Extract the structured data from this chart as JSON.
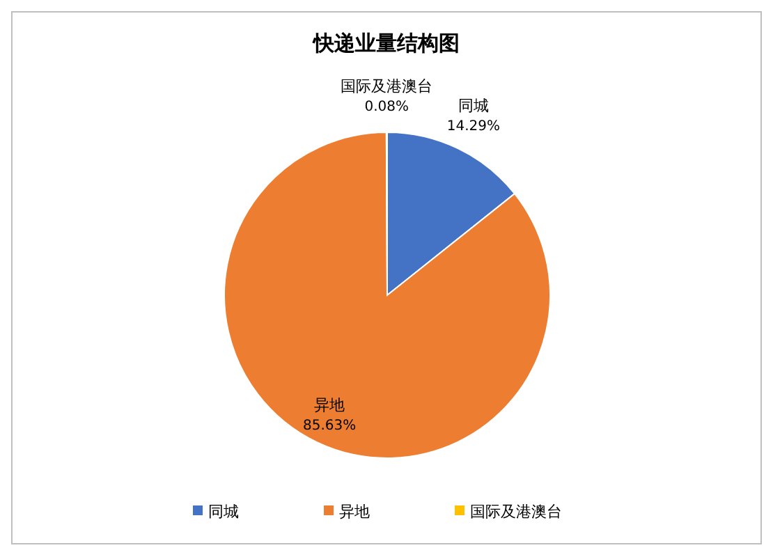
{
  "chart_data": {
    "type": "pie",
    "title": "快递业量结构图",
    "categories": [
      "同城",
      "异地",
      "国际及港澳台"
    ],
    "values": [
      14.29,
      85.63,
      0.08
    ],
    "colors": [
      "#4472c4",
      "#ed7d31",
      "#ffc000"
    ],
    "value_labels": [
      "14.29%",
      "85.63%",
      "0.08%"
    ],
    "legend": "bottom"
  }
}
